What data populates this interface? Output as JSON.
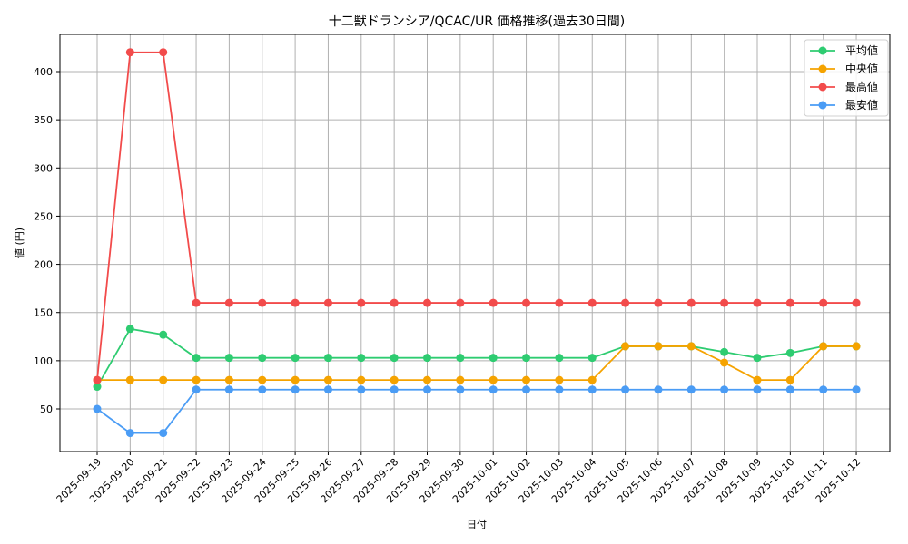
{
  "chart_data": {
    "type": "line",
    "title": "十二獣ドランシア/QCAC/UR 価格推移(過去30日間)",
    "xlabel": "日付",
    "ylabel": "値 (円)",
    "ylim": [
      5,
      440
    ],
    "yticks": [
      50,
      100,
      150,
      200,
      250,
      300,
      350,
      400
    ],
    "grid": true,
    "legend_position": "upper right",
    "categories": [
      "2025-09-19",
      "2025-09-20",
      "2025-09-21",
      "2025-09-22",
      "2025-09-23",
      "2025-09-24",
      "2025-09-25",
      "2025-09-26",
      "2025-09-27",
      "2025-09-28",
      "2025-09-29",
      "2025-09-30",
      "2025-10-01",
      "2025-10-02",
      "2025-10-03",
      "2025-10-04",
      "2025-10-05",
      "2025-10-06",
      "2025-10-07",
      "2025-10-08",
      "2025-10-09",
      "2025-10-10",
      "2025-10-11",
      "2025-10-12"
    ],
    "series": [
      {
        "name": "平均値",
        "color": "#2ecc71",
        "values": [
          73,
          133,
          127,
          103,
          103,
          103,
          103,
          103,
          103,
          103,
          103,
          103,
          103,
          103,
          103,
          103,
          115,
          115,
          115,
          109,
          103,
          108,
          115,
          115
        ]
      },
      {
        "name": "中央値",
        "color": "#f5a300",
        "values": [
          80,
          80,
          80,
          80,
          80,
          80,
          80,
          80,
          80,
          80,
          80,
          80,
          80,
          80,
          80,
          80,
          115,
          115,
          115,
          98,
          80,
          80,
          115,
          115
        ]
      },
      {
        "name": "最高値",
        "color": "#f24b4b",
        "values": [
          80,
          420,
          420,
          160,
          160,
          160,
          160,
          160,
          160,
          160,
          160,
          160,
          160,
          160,
          160,
          160,
          160,
          160,
          160,
          160,
          160,
          160,
          160,
          160
        ]
      },
      {
        "name": "最安値",
        "color": "#4a9cf5",
        "values": [
          50,
          25,
          25,
          70,
          70,
          70,
          70,
          70,
          70,
          70,
          70,
          70,
          70,
          70,
          70,
          70,
          70,
          70,
          70,
          70,
          70,
          70,
          70,
          70
        ]
      }
    ]
  }
}
